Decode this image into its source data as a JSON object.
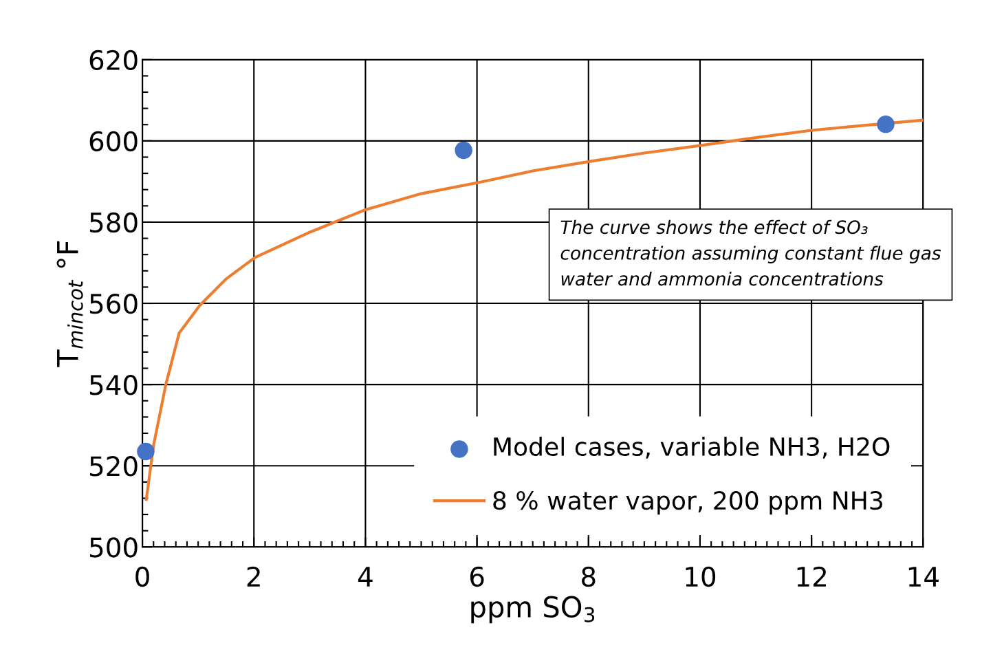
{
  "chart_data": {
    "type": "scatter",
    "xlabel": "ppm SO$_{3}$",
    "ylabel": "T$_{mincot}$ °F",
    "annotations": [
      "The curve shows the effect of SO₃ concentration assuming constant flue gas water and ammonia concentrations"
    ],
    "series": [
      {
        "name": "Model cases, variable NH3, H2O",
        "color": "#4472c4",
        "marker": "circle",
        "x": [
          0.06,
          5.76,
          13.33
        ],
        "values": [
          523.5,
          597.7,
          604.1
        ]
      },
      {
        "name": "8 % water vapor, 200 ppm NH3",
        "type": "line",
        "color": "#ed7d31",
        "marker": "none",
        "line_style": "solid",
        "x": [
          0.07,
          0.2,
          0.42,
          0.66,
          1.03,
          1.5,
          2.02,
          3.0,
          3.99,
          5.0,
          6.08,
          7.0,
          8.05,
          9.0,
          10.02,
          11.0,
          12.0,
          13.0,
          14.0
        ],
        "values": [
          511.7,
          525,
          540,
          552.7,
          559.5,
          566,
          571.3,
          577.5,
          583,
          587,
          589.9,
          592.6,
          595,
          597,
          598.9,
          600.8,
          602.6,
          603.9,
          605.1
        ]
      }
    ],
    "xlim": [
      0,
      14
    ],
    "xticks": [
      0,
      2,
      4,
      6,
      8,
      10,
      12,
      14
    ],
    "ylim": [
      500,
      620
    ],
    "yticks": [
      500,
      520,
      540,
      560,
      580,
      600,
      620
    ],
    "grid": true,
    "legend": "bottom right"
  }
}
